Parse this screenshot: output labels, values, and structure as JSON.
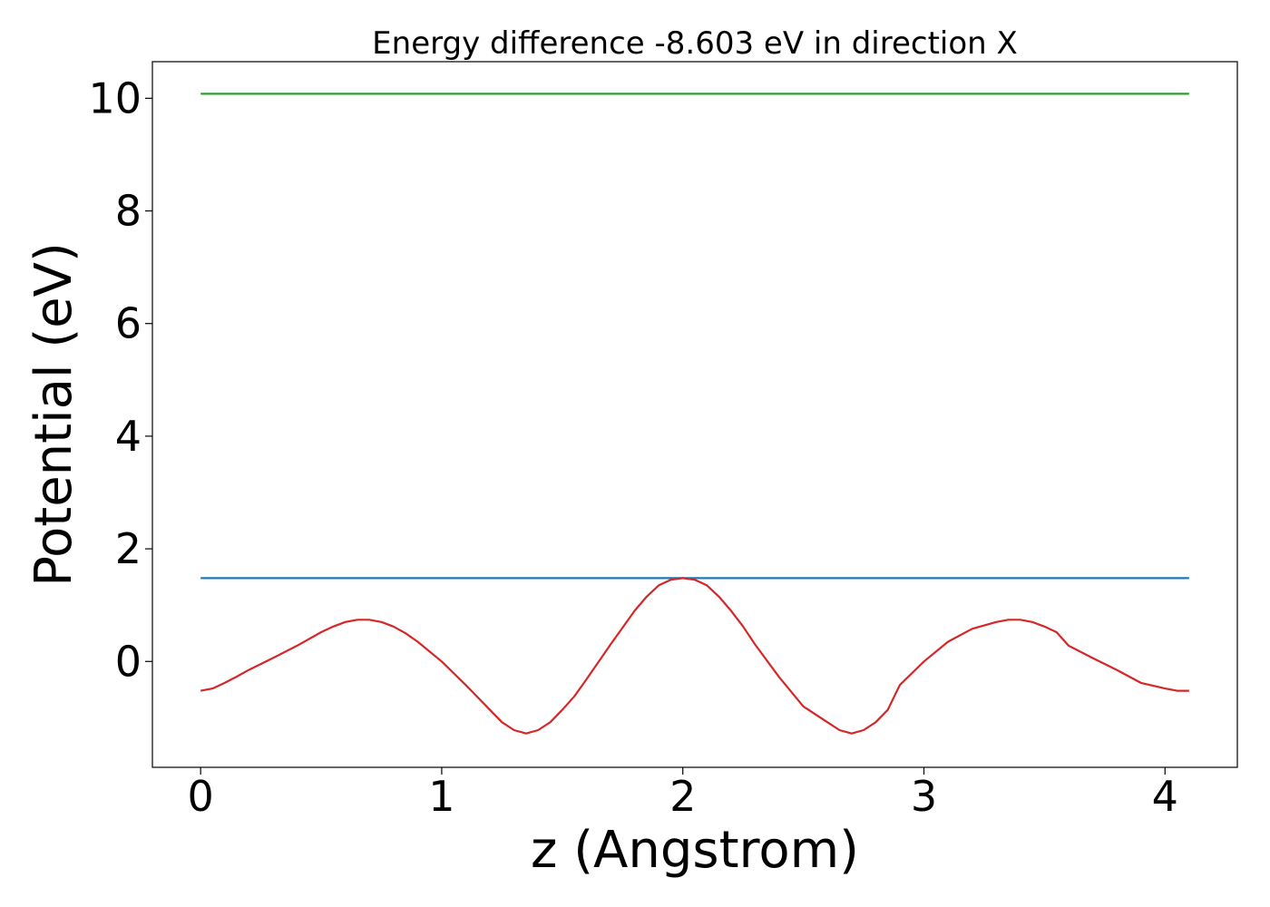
{
  "chart_data": {
    "type": "line",
    "title": "Energy difference -8.603 eV in direction X",
    "xlabel": "z (Angstrom)",
    "ylabel": "Potential (eV)",
    "xlim": [
      -0.2,
      4.3
    ],
    "ylim": [
      -1.88,
      10.65
    ],
    "xticks": [
      0,
      1,
      2,
      3,
      4
    ],
    "yticks": [
      0,
      2,
      4,
      6,
      8,
      10
    ],
    "grid": false,
    "legend": "none",
    "series": [
      {
        "color": "#2ca02c",
        "x": [
          0,
          4.1
        ],
        "y": [
          10.08,
          10.08
        ]
      },
      {
        "color": "#1f77b4",
        "x": [
          0,
          4.1
        ],
        "y": [
          1.48,
          1.48
        ]
      },
      {
        "color": "#d62728",
        "x": [
          0.0,
          0.05,
          0.1,
          0.15,
          0.2,
          0.3,
          0.4,
          0.5,
          0.55,
          0.6,
          0.65,
          0.7,
          0.75,
          0.8,
          0.85,
          0.9,
          1.0,
          1.1,
          1.2,
          1.25,
          1.3,
          1.35,
          1.4,
          1.45,
          1.5,
          1.55,
          1.6,
          1.7,
          1.8,
          1.85,
          1.9,
          1.95,
          2.0,
          2.05,
          2.1,
          2.15,
          2.2,
          2.25,
          2.3,
          2.4,
          2.5,
          2.6,
          2.65,
          2.7,
          2.75,
          2.8,
          2.85,
          2.9,
          3.0,
          3.1,
          3.2,
          3.3,
          3.35,
          3.4,
          3.45,
          3.5,
          3.55,
          3.6,
          3.7,
          3.8,
          3.9,
          4.0,
          4.05,
          4.1
        ],
        "y": [
          -0.52,
          -0.48,
          -0.38,
          -0.27,
          -0.15,
          0.06,
          0.28,
          0.52,
          0.62,
          0.7,
          0.74,
          0.74,
          0.7,
          0.62,
          0.5,
          0.35,
          0.0,
          -0.42,
          -0.86,
          -1.08,
          -1.22,
          -1.28,
          -1.22,
          -1.08,
          -0.86,
          -0.62,
          -0.32,
          0.3,
          0.9,
          1.15,
          1.35,
          1.45,
          1.48,
          1.45,
          1.35,
          1.15,
          0.9,
          0.62,
          0.3,
          -0.28,
          -0.8,
          -1.08,
          -1.22,
          -1.28,
          -1.22,
          -1.08,
          -0.86,
          -0.42,
          0.0,
          0.35,
          0.58,
          0.7,
          0.74,
          0.74,
          0.7,
          0.62,
          0.52,
          0.28,
          0.06,
          -0.15,
          -0.38,
          -0.48,
          -0.52,
          -0.52
        ]
      }
    ]
  }
}
